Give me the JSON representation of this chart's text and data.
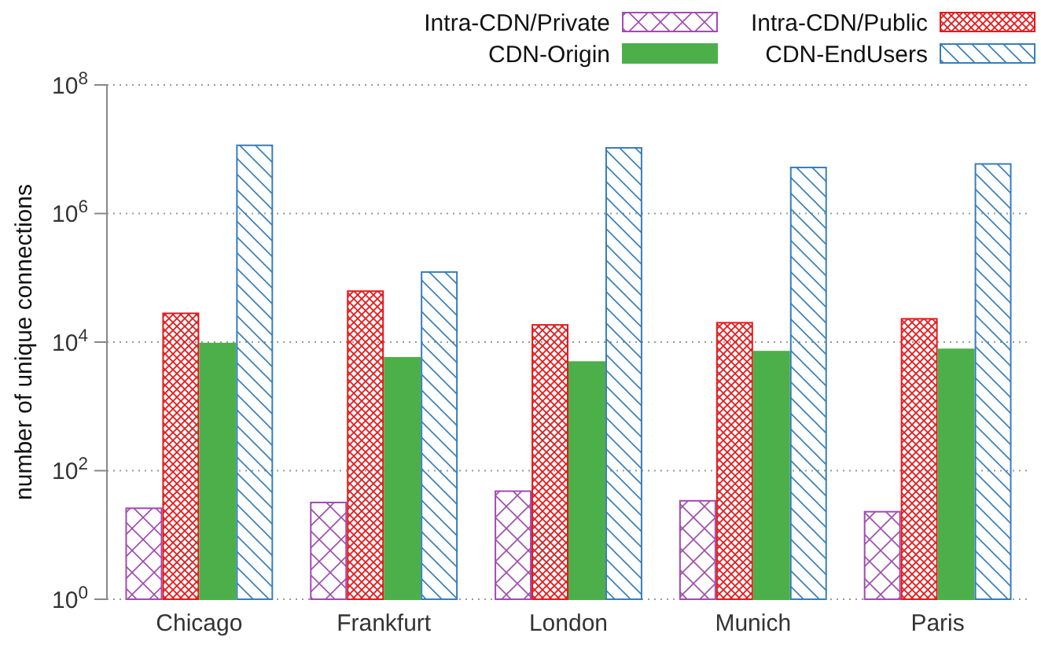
{
  "chart_data": {
    "type": "bar",
    "ylabel": "number of unique connections",
    "log": "y",
    "grid": "y",
    "legend": "top",
    "categories": [
      "Chicago",
      "Frankfurt",
      "London",
      "Munich",
      "Paris"
    ],
    "ylim": [
      1,
      100000000
    ],
    "yticks": [
      {
        "value": 1,
        "label": "10$^{0}$"
      },
      {
        "value": 100,
        "label": "10$^{2}$"
      },
      {
        "value": 10000,
        "label": "10$^{4}$"
      },
      {
        "value": 1000000,
        "label": "10$^{6}$"
      },
      {
        "value": 100000000,
        "label": "10$^{8}$"
      }
    ],
    "series": [
      {
        "name": "Intra-CDN/Private",
        "color": "#a04cb0",
        "values": [
          26,
          32,
          48,
          34,
          23
        ]
      },
      {
        "name": "Intra-CDN/Public",
        "color": "#e41a1c",
        "values": [
          28000,
          62000,
          18500,
          20000,
          23000
        ]
      },
      {
        "name": "CDN-Origin",
        "color": "#4daf4a",
        "values": [
          9500,
          5700,
          4900,
          7100,
          7700
        ]
      },
      {
        "name": "CDN-EndUsers",
        "color": "#377eb8",
        "values": [
          11500000,
          123000,
          10500000,
          5200000,
          5900000
        ]
      }
    ]
  }
}
